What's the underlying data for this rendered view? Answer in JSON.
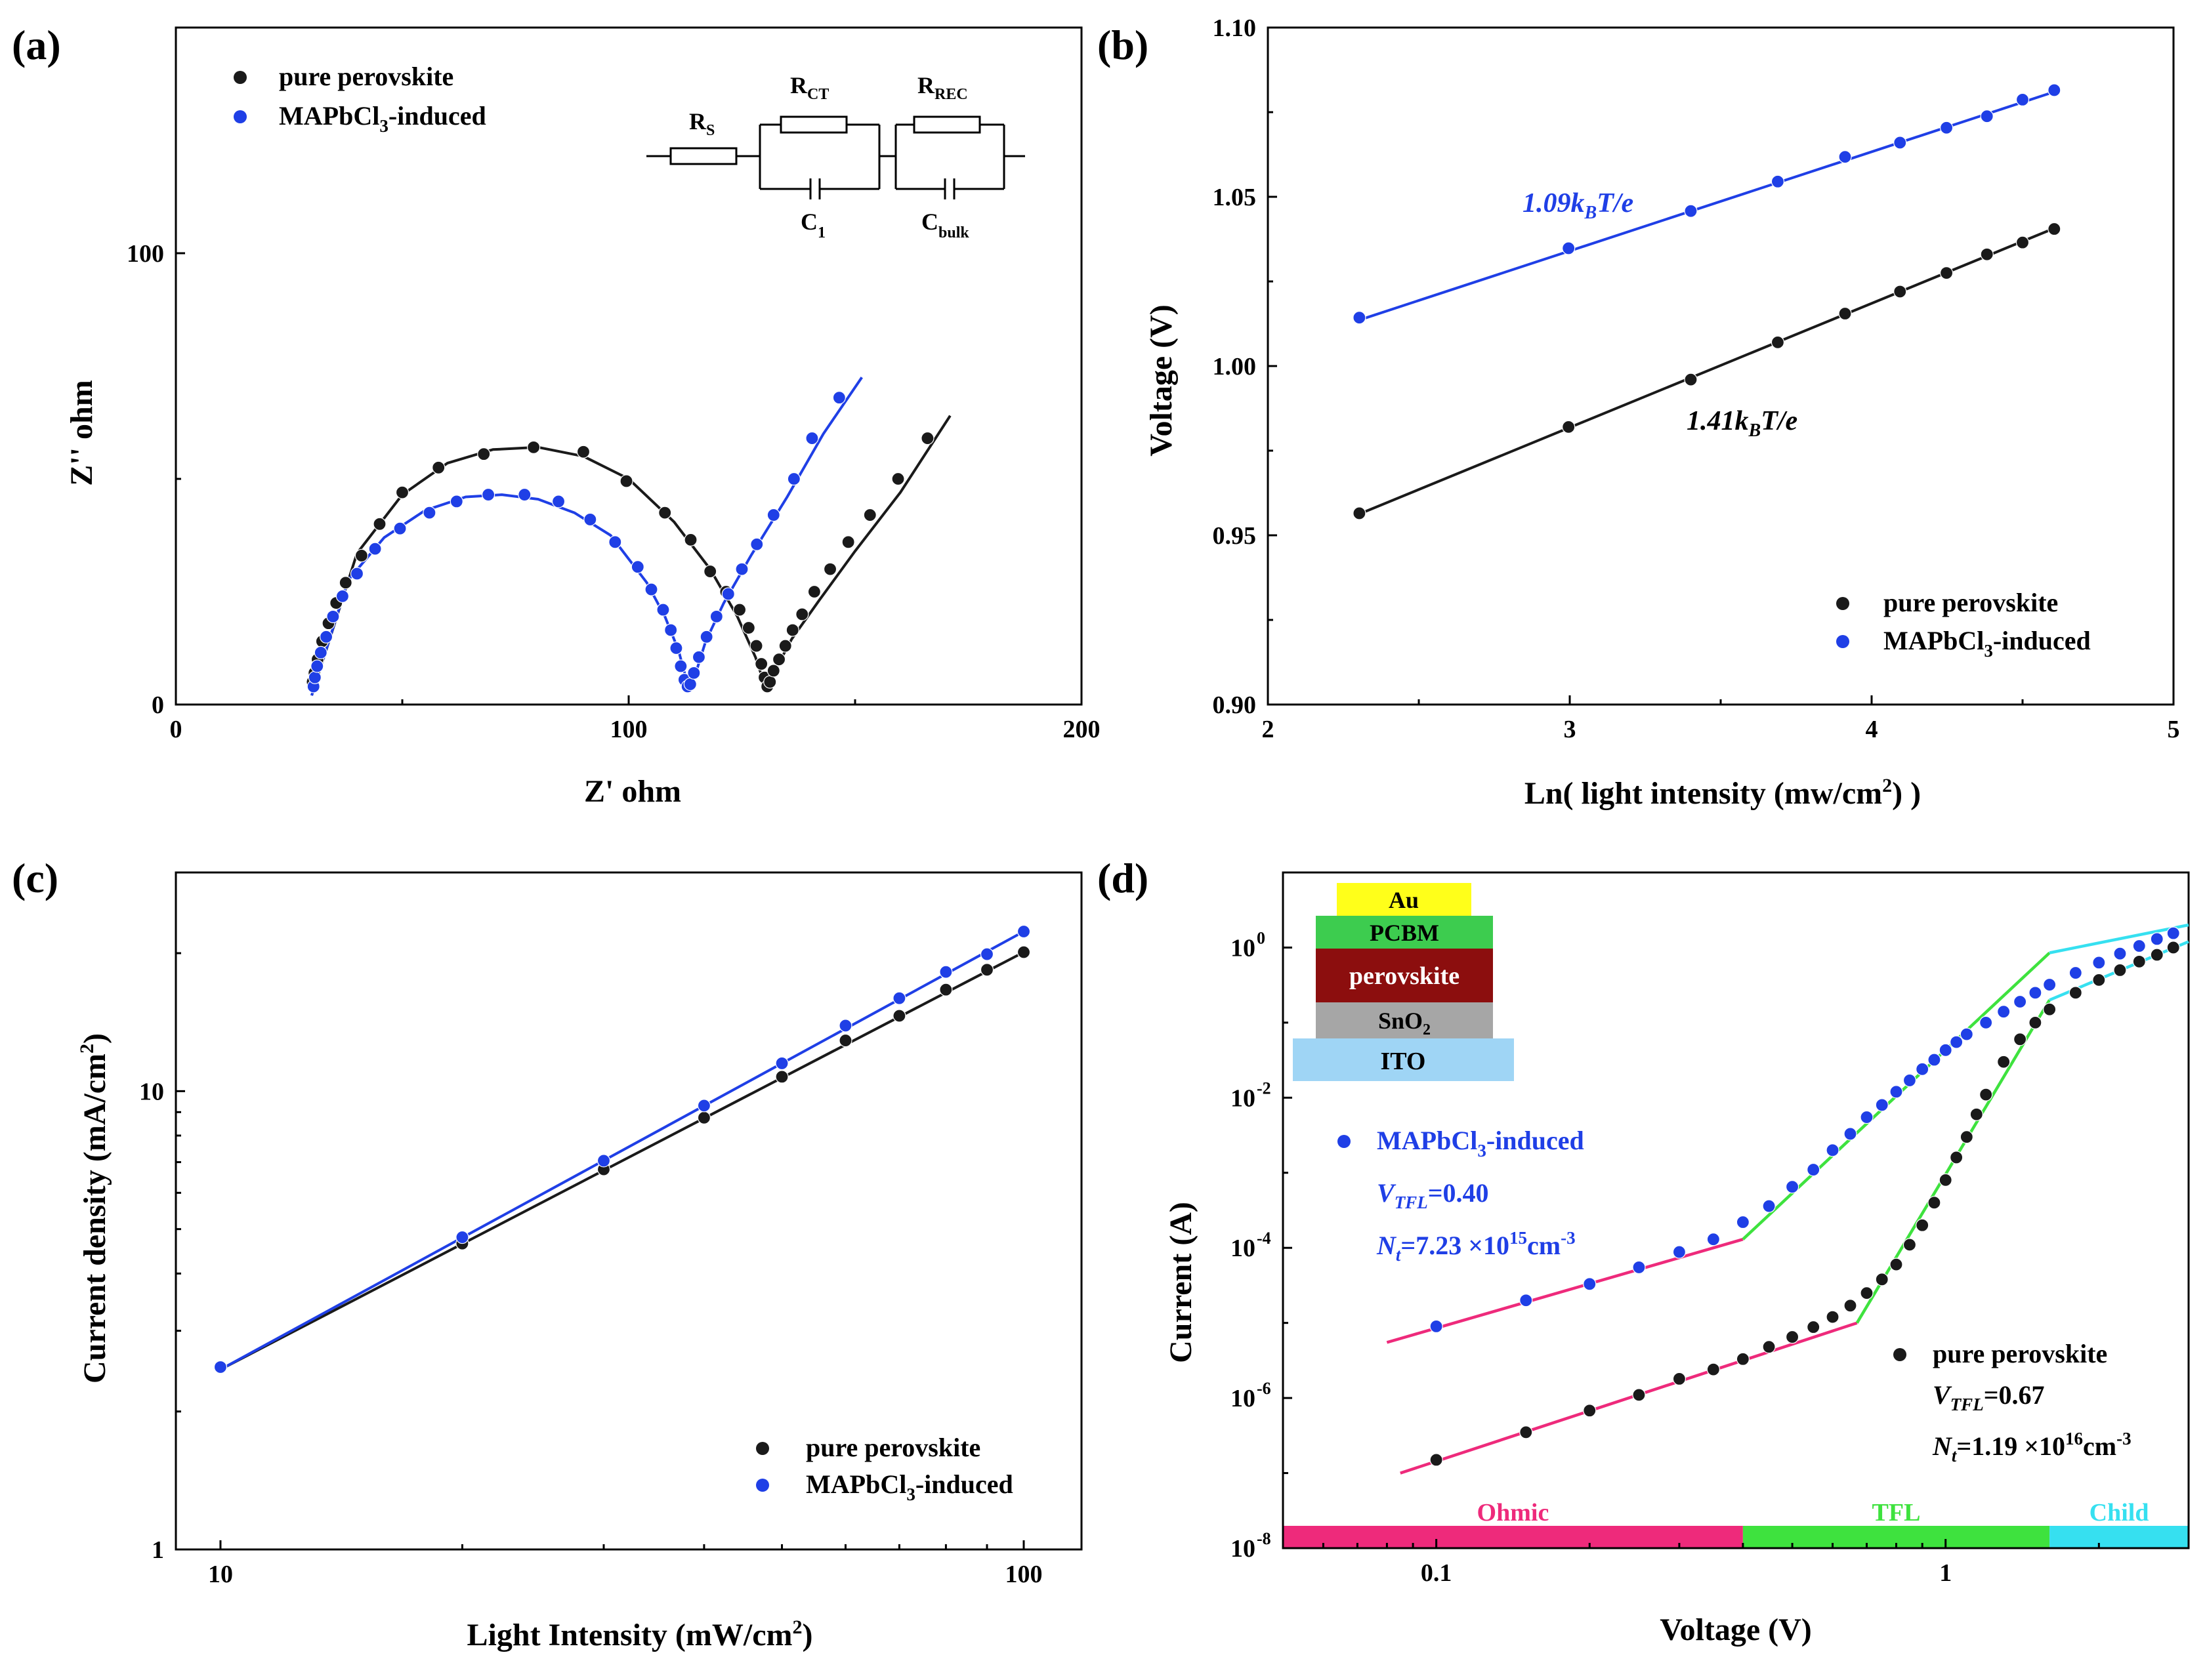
{
  "colors": {
    "black": "#1a1a1a",
    "blue": "#1f3fe6",
    "pink": "#ee2a7b",
    "green": "#3ee23e",
    "cyan": "#36e0f0",
    "au": "#ffff1a",
    "pcbm": "#3dcc4f",
    "perovskite": "#8c0e0e",
    "sno2": "#a6a6a6",
    "ito": "#9fd5f5"
  },
  "chart_data": [
    {
      "panel": "(a)",
      "type": "scatter",
      "xlabel": "Z' ohm",
      "ylabel": "Z'' ohm",
      "xlim": [
        0,
        200
      ],
      "ylim": [
        0,
        150
      ],
      "xticks": [
        "0",
        "100",
        "200"
      ],
      "yticks": [
        "0",
        "100"
      ],
      "legend": {
        "placement": "top-left",
        "entries": [
          "pure perovskite",
          "MAPbCl3-induced"
        ]
      },
      "circuit_labels": {
        "rs": "R",
        "rs_sub": "S",
        "rct": "R",
        "rct_sub": "CT",
        "rrec": "R",
        "rrec_sub": "REC",
        "c1": "C",
        "c1_sub": "1",
        "cbulk": "C",
        "cbulk_sub": "bulk"
      },
      "series": [
        {
          "name": "pure perovskite",
          "color": "black",
          "x": [
            30.2,
            30.6,
            31.3,
            32.3,
            33.7,
            35.4,
            37.5,
            41.0,
            45.0,
            50.0,
            58.0,
            68.0,
            79.0,
            90.0,
            99.5,
            108.0,
            113.7,
            118.0,
            121.5,
            124.5,
            126.5,
            128.2,
            129.3,
            130.0,
            130.6,
            131.2,
            132.0,
            133.2,
            134.6,
            136.2,
            138.3,
            141.0,
            144.5,
            148.5,
            153.3,
            159.5,
            166.0
          ],
          "y": [
            5.0,
            7.0,
            10.0,
            14.0,
            18.0,
            22.5,
            27.0,
            33.0,
            40.0,
            47.0,
            52.5,
            55.5,
            57.0,
            56.0,
            49.5,
            42.5,
            36.5,
            29.5,
            25.0,
            21.0,
            17.0,
            13.0,
            9.0,
            6.0,
            4.0,
            5.0,
            7.5,
            10.0,
            13.0,
            16.5,
            20.0,
            25.0,
            30.0,
            36.0,
            42.0,
            50.0,
            59.0
          ]
        },
        {
          "name": "MAPbCl3-induced",
          "color": "blue",
          "x": [
            30.4,
            30.7,
            31.2,
            32.0,
            33.2,
            34.7,
            36.8,
            40.0,
            44.0,
            49.5,
            56.0,
            62.0,
            69.0,
            77.0,
            84.5,
            91.5,
            97.0,
            102.0,
            105.0,
            107.6,
            109.3,
            110.5,
            111.5,
            112.3,
            113.0,
            113.6,
            114.4,
            115.5,
            117.2,
            119.4,
            122.0,
            125.0,
            128.3,
            132.0,
            136.5,
            140.5,
            146.5
          ],
          "y": [
            4.0,
            6.0,
            8.5,
            11.5,
            15.0,
            19.5,
            24.0,
            29.0,
            34.5,
            39.0,
            42.5,
            45.0,
            46.5,
            46.5,
            45.0,
            41.0,
            36.0,
            30.5,
            25.5,
            21.0,
            16.5,
            12.5,
            8.5,
            5.5,
            4.0,
            4.5,
            7.0,
            10.5,
            15.0,
            19.5,
            24.5,
            30.0,
            35.5,
            42.0,
            50.0,
            59.0,
            68.0
          ]
        }
      ],
      "fits": [
        {
          "color": "black",
          "x": [
            30,
            40,
            50,
            60,
            70,
            80,
            90,
            100,
            110,
            118,
            124,
            128,
            130,
            132,
            136,
            142,
            150,
            160,
            171
          ],
          "y": [
            2,
            33.5,
            46.5,
            53.5,
            56.5,
            57,
            55,
            50,
            40.5,
            30,
            19.5,
            10.5,
            4.5,
            7,
            14.5,
            23,
            34,
            47,
            64
          ]
        },
        {
          "color": "blue",
          "x": [
            30,
            38,
            46,
            55,
            64,
            72,
            80,
            88,
            96,
            104,
            108,
            111,
            113,
            114.5,
            117,
            121,
            127,
            135,
            143,
            151.5
          ],
          "y": [
            2,
            27.5,
            37,
            43,
            46,
            46.5,
            45.5,
            42.5,
            37.5,
            27,
            19.5,
            12,
            4.5,
            6,
            14,
            22.5,
            33,
            46,
            60,
            72.5
          ]
        }
      ]
    },
    {
      "panel": "(b)",
      "type": "scatter",
      "xlabel": "Ln( light intensity (mw/cm2) )",
      "xlabel_parts": [
        "Ln( light intensity (mw/cm",
        "2",
        ") )"
      ],
      "ylabel": "Voltage (V)",
      "xlim": [
        2,
        5
      ],
      "ylim": [
        0.9,
        1.1
      ],
      "xticks": [
        "2",
        "3",
        "4",
        "5"
      ],
      "yticks": [
        "0.90",
        "0.95",
        "1.00",
        "1.05",
        "1.10"
      ],
      "legend": {
        "placement": "bottom-right",
        "entries": [
          "pure perovskite",
          "MAPbCl3-induced"
        ]
      },
      "annotations": [
        {
          "text": "1.09kBT/e",
          "num": "1.09",
          "k": "k",
          "sub": "B",
          "rest": "T/e",
          "color": "blue"
        },
        {
          "text": "1.41kBT/e",
          "num": "1.41",
          "k": "k",
          "sub": "B",
          "rest": "T/e",
          "color": "black"
        }
      ],
      "series": [
        {
          "name": "pure perovskite",
          "color": "black",
          "x": [
            2.303,
            2.996,
            3.401,
            3.689,
            3.912,
            4.094,
            4.248,
            4.382,
            4.5,
            4.605
          ],
          "y": [
            0.9565,
            0.982,
            0.996,
            1.007,
            1.0155,
            1.022,
            1.0275,
            1.033,
            1.0365,
            1.0405
          ]
        },
        {
          "name": "MAPbCl3-induced",
          "color": "blue",
          "x": [
            2.303,
            2.996,
            3.401,
            3.689,
            3.912,
            4.094,
            4.248,
            4.382,
            4.5,
            4.605
          ],
          "y": [
            1.0143,
            1.0348,
            1.0458,
            1.0545,
            1.0618,
            1.066,
            1.0704,
            1.0738,
            1.0787,
            1.0815
          ]
        }
      ],
      "fits": [
        {
          "color": "black",
          "x": [
            2.303,
            4.605
          ],
          "y": [
            0.9563,
            1.0407
          ]
        },
        {
          "color": "blue",
          "x": [
            2.303,
            4.605
          ],
          "y": [
            1.0136,
            1.081
          ]
        }
      ]
    },
    {
      "panel": "(c)",
      "type": "scatter",
      "xscale": "log",
      "yscale": "log",
      "xlabel": "Light Intensity (mW/cm2)",
      "xlabel_parts": [
        "Light Intensity (mW/cm",
        "2",
        ")"
      ],
      "ylabel": "Current density (mA/cm2)",
      "ylabel_parts": [
        "Current density (mA/cm",
        "2",
        ")"
      ],
      "xlim": [
        8.8,
        118
      ],
      "ylim": [
        1,
        30
      ],
      "xticks": [
        {
          "value": 10,
          "label": "10"
        },
        {
          "value": 100,
          "label": "100"
        }
      ],
      "yticks": [
        {
          "value": 1,
          "label": "1"
        },
        {
          "value": 10,
          "label": "10"
        }
      ],
      "legend": {
        "placement": "bottom-right",
        "entries": [
          "pure perovskite",
          "MAPbCl3-induced"
        ]
      },
      "series": [
        {
          "name": "pure perovskite",
          "color": "black",
          "x": [
            10,
            20,
            30,
            40,
            50,
            60,
            70,
            80,
            90,
            100
          ],
          "y": [
            2.5,
            4.65,
            6.75,
            8.75,
            10.75,
            12.9,
            14.6,
            16.65,
            18.4,
            20.1
          ]
        },
        {
          "name": "MAPbCl3-induced",
          "color": "blue",
          "x": [
            10,
            20,
            30,
            40,
            50,
            60,
            70,
            80,
            90,
            100
          ],
          "y": [
            2.5,
            4.8,
            7.05,
            9.3,
            11.5,
            13.9,
            15.95,
            18.2,
            19.9,
            22.3
          ]
        }
      ],
      "fits": [
        {
          "color": "black",
          "x": [
            10,
            100
          ],
          "y": [
            2.47,
            20.1
          ]
        },
        {
          "color": "blue",
          "x": [
            10,
            100
          ],
          "y": [
            2.47,
            22.3
          ]
        }
      ]
    },
    {
      "panel": "(d)",
      "type": "scatter",
      "xscale": "log",
      "yscale": "log",
      "xlabel": "Voltage (V)",
      "ylabel": "Current (A)",
      "xlim": [
        0.05,
        3
      ],
      "ylim": [
        1e-08,
        10
      ],
      "xticks": [
        {
          "value": 0.1,
          "label": "0.1"
        },
        {
          "value": 1,
          "label": "1"
        }
      ],
      "yticks": [
        {
          "value": 1e-08,
          "base": "10",
          "exp": "-8"
        },
        {
          "value": 1e-06,
          "base": "10",
          "exp": "-6"
        },
        {
          "value": 0.0001,
          "base": "10",
          "exp": "-4"
        },
        {
          "value": 0.01,
          "base": "10",
          "exp": "-2"
        },
        {
          "value": 1,
          "base": "10",
          "exp": "0"
        }
      ],
      "device_layers": [
        "Au",
        "PCBM",
        "perovskite",
        "SnO2",
        "ITO"
      ],
      "sno2_parts": [
        "SnO",
        "2"
      ],
      "regions": [
        {
          "label": "Ohmic",
          "from": 0.05,
          "to": 0.4,
          "color": "pink"
        },
        {
          "label": "TFL",
          "from": 0.4,
          "to": 1.6,
          "color": "green"
        },
        {
          "label": "Child",
          "from": 1.6,
          "to": 3,
          "color": "cyan"
        }
      ],
      "blue_info": {
        "legend": "MAPbCl3-induced",
        "vtfl": "VTFL=0.40",
        "nt": "Nt=7.23 ×1015cm-3"
      },
      "black_info": {
        "legend": "pure perovskite",
        "vtfl": "VTFL=0.67",
        "nt": "Nt=1.19 ×1016cm-3"
      },
      "series": [
        {
          "name": "pure perovskite",
          "color": "black",
          "x": [
            0.1,
            0.15,
            0.2,
            0.25,
            0.3,
            0.35,
            0.4,
            0.45,
            0.5,
            0.55,
            0.6,
            0.65,
            0.7,
            0.75,
            0.8,
            0.85,
            0.9,
            0.95,
            1.0,
            1.05,
            1.1,
            1.15,
            1.2,
            1.3,
            1.4,
            1.5,
            1.6,
            1.8,
            2.0,
            2.2,
            2.4,
            2.6,
            2.8
          ],
          "y": [
            1.5e-07,
            3.5e-07,
            6.8e-07,
            1.1e-06,
            1.8e-06,
            2.4e-06,
            3.3e-06,
            4.8e-06,
            6.5e-06,
            8.8e-06,
            1.2e-05,
            1.7e-05,
            2.5e-05,
            3.8e-05,
            6e-05,
            0.00011,
            0.0002,
            0.0004,
            0.0008,
            0.0016,
            0.003,
            0.006,
            0.011,
            0.03,
            0.06,
            0.1,
            0.15,
            0.25,
            0.37,
            0.5,
            0.65,
            0.8,
            1.0
          ]
        },
        {
          "name": "MAPbCl3-induced",
          "color": "blue",
          "x": [
            0.1,
            0.15,
            0.2,
            0.25,
            0.3,
            0.35,
            0.4,
            0.45,
            0.5,
            0.55,
            0.6,
            0.65,
            0.7,
            0.75,
            0.8,
            0.85,
            0.9,
            0.95,
            1.0,
            1.05,
            1.1,
            1.2,
            1.3,
            1.4,
            1.5,
            1.6,
            1.8,
            2.0,
            2.2,
            2.4,
            2.6,
            2.8
          ],
          "y": [
            9e-06,
            2e-05,
            3.3e-05,
            5.5e-05,
            8.8e-05,
            0.00013,
            0.00022,
            0.00036,
            0.00065,
            0.0011,
            0.002,
            0.0033,
            0.0055,
            0.008,
            0.012,
            0.017,
            0.024,
            0.032,
            0.043,
            0.055,
            0.07,
            0.1,
            0.14,
            0.19,
            0.25,
            0.32,
            0.46,
            0.63,
            0.83,
            1.05,
            1.3,
            1.55
          ]
        }
      ],
      "fits": [
        {
          "color": "pink",
          "x": [
            0.08,
            0.4
          ],
          "y": [
            5.5e-06,
            0.00013
          ]
        },
        {
          "color": "green",
          "x": [
            0.4,
            1.6
          ],
          "y": [
            0.00013,
            0.85
          ]
        },
        {
          "color": "cyan",
          "x": [
            1.6,
            3
          ],
          "y": [
            0.85,
            2.0
          ]
        },
        {
          "color": "pink",
          "x": [
            0.085,
            0.67
          ],
          "y": [
            1e-07,
            1e-05
          ]
        },
        {
          "color": "green",
          "x": [
            0.67,
            1.6
          ],
          "y": [
            1e-05,
            0.2
          ]
        },
        {
          "color": "cyan",
          "x": [
            1.6,
            3
          ],
          "y": [
            0.2,
            1.2
          ]
        }
      ]
    }
  ]
}
